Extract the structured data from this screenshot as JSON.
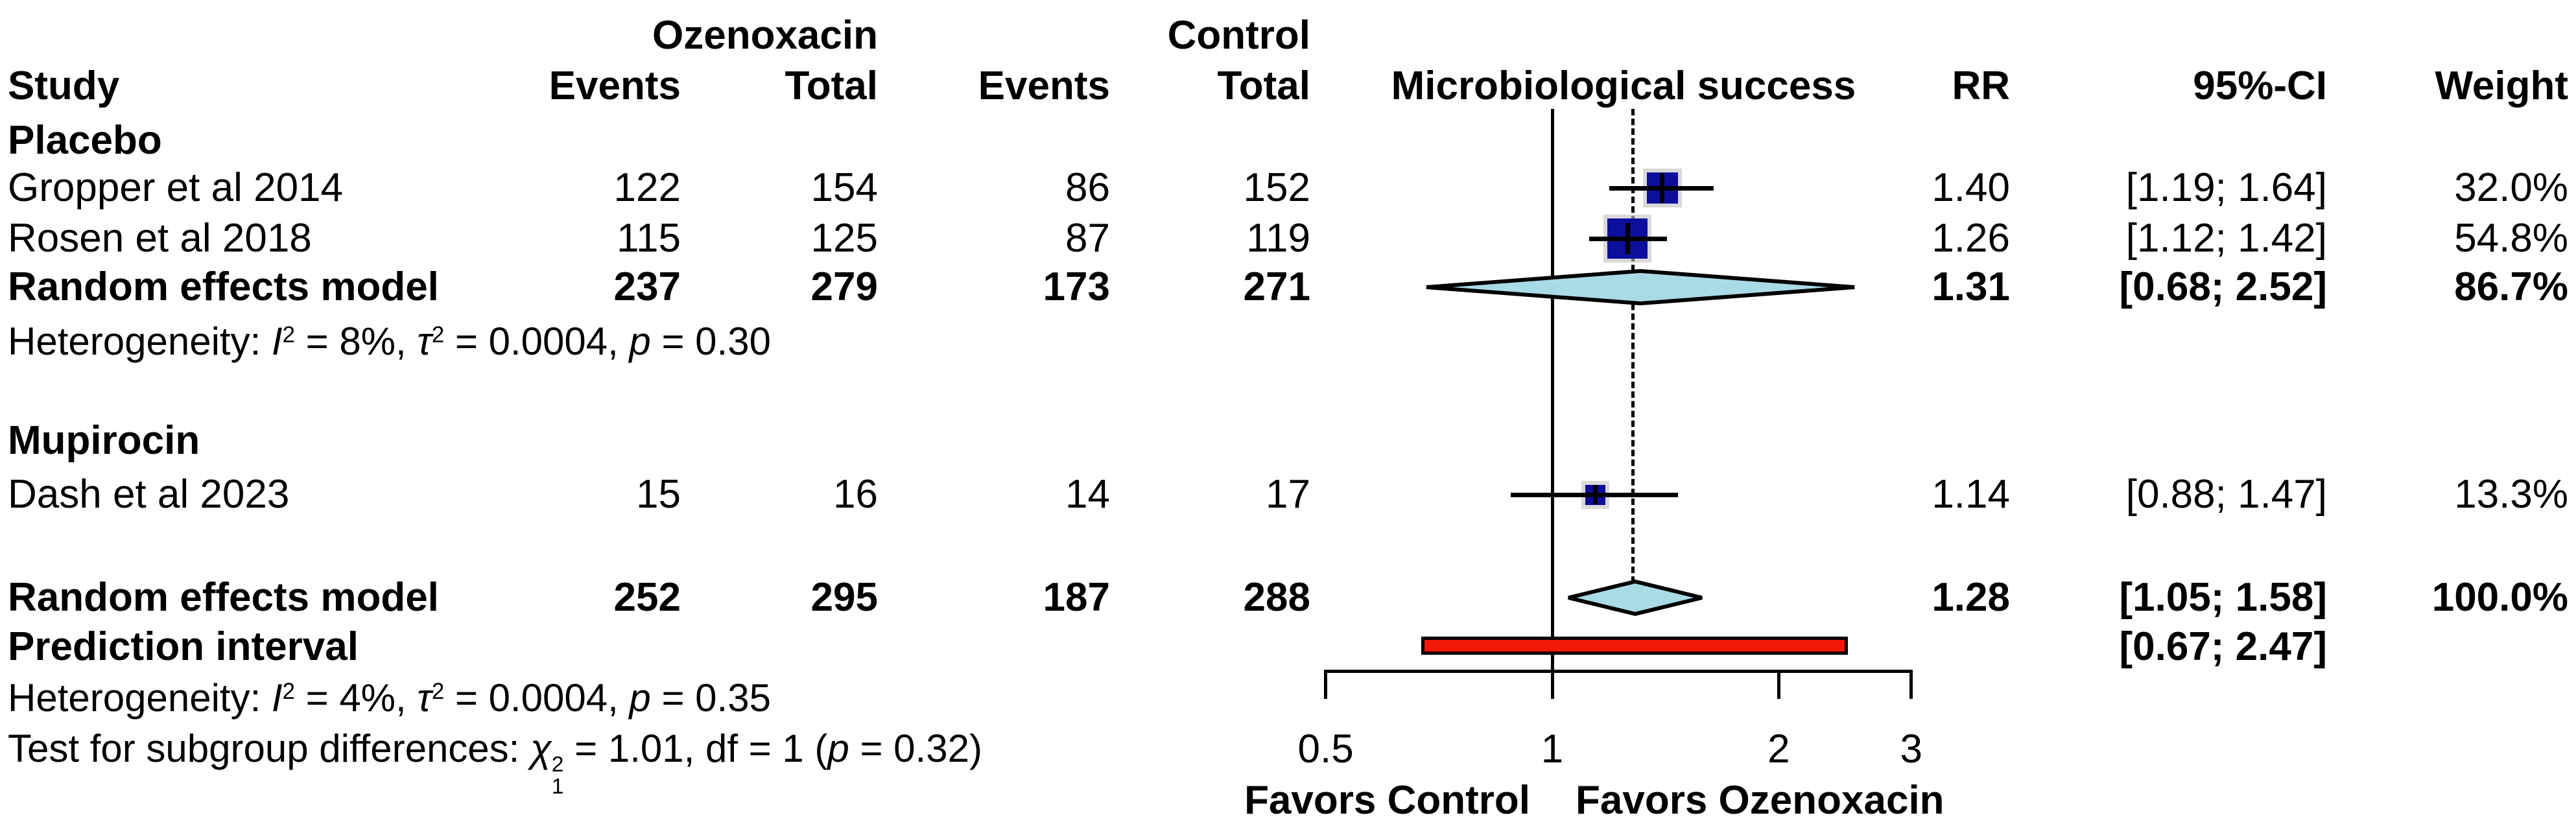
{
  "colors": {
    "square": "#0e0e9c",
    "square_halo": "#bfbfbf",
    "diamond_fill": "#a9dbe6",
    "diamond_border": "#000000",
    "prediction_fill": "#f21807",
    "prediction_border": "#000000",
    "line": "#000000"
  },
  "header": {
    "group_experimental": "Ozenoxacin",
    "group_control": "Control",
    "col_study": "Study",
    "col_events_exp": "Events",
    "col_total_exp": "Total",
    "col_events_ctrl": "Events",
    "col_total_ctrl": "Total",
    "col_plot": "Microbiological success",
    "col_rr": "RR",
    "col_ci": "95%-CI",
    "col_weight": "Weight"
  },
  "rows": {
    "placebo_label": "Placebo",
    "gropper": {
      "study": "Gropper et al 2014",
      "e1": "122",
      "t1": "154",
      "e2": "86",
      "t2": "152",
      "rr": "1.40",
      "ci": "[1.19; 1.64]",
      "w": "32.0%"
    },
    "rosen": {
      "study": "Rosen et al 2018",
      "e1": "115",
      "t1": "125",
      "e2": "87",
      "t2": "119",
      "rr": "1.26",
      "ci": "[1.12; 1.42]",
      "w": "54.8%"
    },
    "placebo_pooled": {
      "study": "Random effects model",
      "e1": "237",
      "t1": "279",
      "e2": "173",
      "t2": "271",
      "rr": "1.31",
      "ci": "[0.68; 2.52]",
      "w": "86.7%"
    },
    "mupirocin_label": "Mupirocin",
    "dash": {
      "study": "Dash et al 2023",
      "e1": "15",
      "t1": "16",
      "e2": "14",
      "t2": "17",
      "rr": "1.14",
      "ci": "[0.88; 1.47]",
      "w": "13.3%"
    },
    "overall_pooled": {
      "study": "Random effects model",
      "e1": "252",
      "t1": "295",
      "e2": "187",
      "t2": "288",
      "rr": "1.28",
      "ci": "[1.05; 1.58]",
      "w": "100.0%"
    },
    "prediction": {
      "label": "Prediction interval",
      "ci": "[0.67; 2.47]"
    }
  },
  "footnotes": {
    "het_placebo": [
      {
        "t": "Heterogeneity: "
      },
      {
        "t": "I",
        "i": true
      },
      {
        "t": "2",
        "sup": true
      },
      {
        "t": " = 8%, "
      },
      {
        "t": "τ",
        "i": true
      },
      {
        "t": "2",
        "sup": true
      },
      {
        "t": " = 0.0004, "
      },
      {
        "t": "p",
        "i": true
      },
      {
        "t": " = 0.30"
      }
    ],
    "het_overall": [
      {
        "t": "Heterogeneity: "
      },
      {
        "t": "I",
        "i": true
      },
      {
        "t": "2",
        "sup": true
      },
      {
        "t": " = 4%, "
      },
      {
        "t": "τ",
        "i": true
      },
      {
        "t": "2",
        "sup": true
      },
      {
        "t": " = 0.0004, "
      },
      {
        "t": "p",
        "i": true
      },
      {
        "t": " = 0.35"
      }
    ],
    "subgroup_test": [
      {
        "t": "Test for subgroup differences: "
      },
      {
        "t": "χ",
        "i": true
      },
      {
        "stack": [
          "2",
          "1"
        ]
      },
      {
        "t": " = 1.01, df = 1 ("
      },
      {
        "t": "p",
        "i": true
      },
      {
        "t": " = 0.32)"
      }
    ]
  },
  "axis": {
    "tick_labels": [
      "0.5",
      "1",
      "2",
      "3"
    ],
    "favors_left": "Favors Control",
    "favors_right": "Favors Ozenoxacin"
  },
  "chart_data": {
    "type": "forest",
    "title": "Microbiological success",
    "effect_measure": "RR",
    "x_scale": "log",
    "xlim": [
      0.5,
      3
    ],
    "axis_ticks": [
      0.5,
      1,
      2,
      3
    ],
    "null_value": 1,
    "pooled_line_at": 1.28,
    "studies": [
      {
        "subgroup": "Placebo",
        "name": "Gropper et al 2014",
        "events_exp": 122,
        "total_exp": 154,
        "events_ctrl": 86,
        "total_ctrl": 152,
        "rr": 1.4,
        "ci_low": 1.19,
        "ci_high": 1.64,
        "weight_pct": 32.0,
        "row_y": 290
      },
      {
        "subgroup": "Placebo",
        "name": "Rosen et al 2018",
        "events_exp": 115,
        "total_exp": 125,
        "events_ctrl": 87,
        "total_ctrl": 119,
        "rr": 1.26,
        "ci_low": 1.12,
        "ci_high": 1.42,
        "weight_pct": 54.8,
        "row_y": 368
      },
      {
        "subgroup": "Mupirocin",
        "name": "Dash et al 2023",
        "events_exp": 15,
        "total_exp": 16,
        "events_ctrl": 14,
        "total_ctrl": 17,
        "rr": 1.14,
        "ci_low": 0.88,
        "ci_high": 1.47,
        "weight_pct": 13.3,
        "row_y": 763
      }
    ],
    "pooled": [
      {
        "label": "Random effects model (Placebo subgroup)",
        "events_exp": 237,
        "total_exp": 279,
        "events_ctrl": 173,
        "total_ctrl": 271,
        "rr": 1.31,
        "ci_low": 0.68,
        "ci_high": 2.52,
        "weight_pct": 86.7,
        "row_y": 443
      },
      {
        "label": "Random effects model (overall)",
        "events_exp": 252,
        "total_exp": 295,
        "events_ctrl": 187,
        "total_ctrl": 288,
        "rr": 1.28,
        "ci_low": 1.05,
        "ci_high": 1.58,
        "weight_pct": 100.0,
        "row_y": 922
      }
    ],
    "prediction_interval": {
      "ci_low": 0.67,
      "ci_high": 2.47,
      "row_y": 996
    },
    "heterogeneity": [
      {
        "scope": "Placebo",
        "I2_pct": 8,
        "tau2": 0.0004,
        "p": 0.3
      },
      {
        "scope": "overall",
        "I2_pct": 4,
        "tau2": 0.0004,
        "p": 0.35
      }
    ],
    "subgroup_test": {
      "chi2": 1.01,
      "df": 1,
      "p": 0.32
    }
  }
}
